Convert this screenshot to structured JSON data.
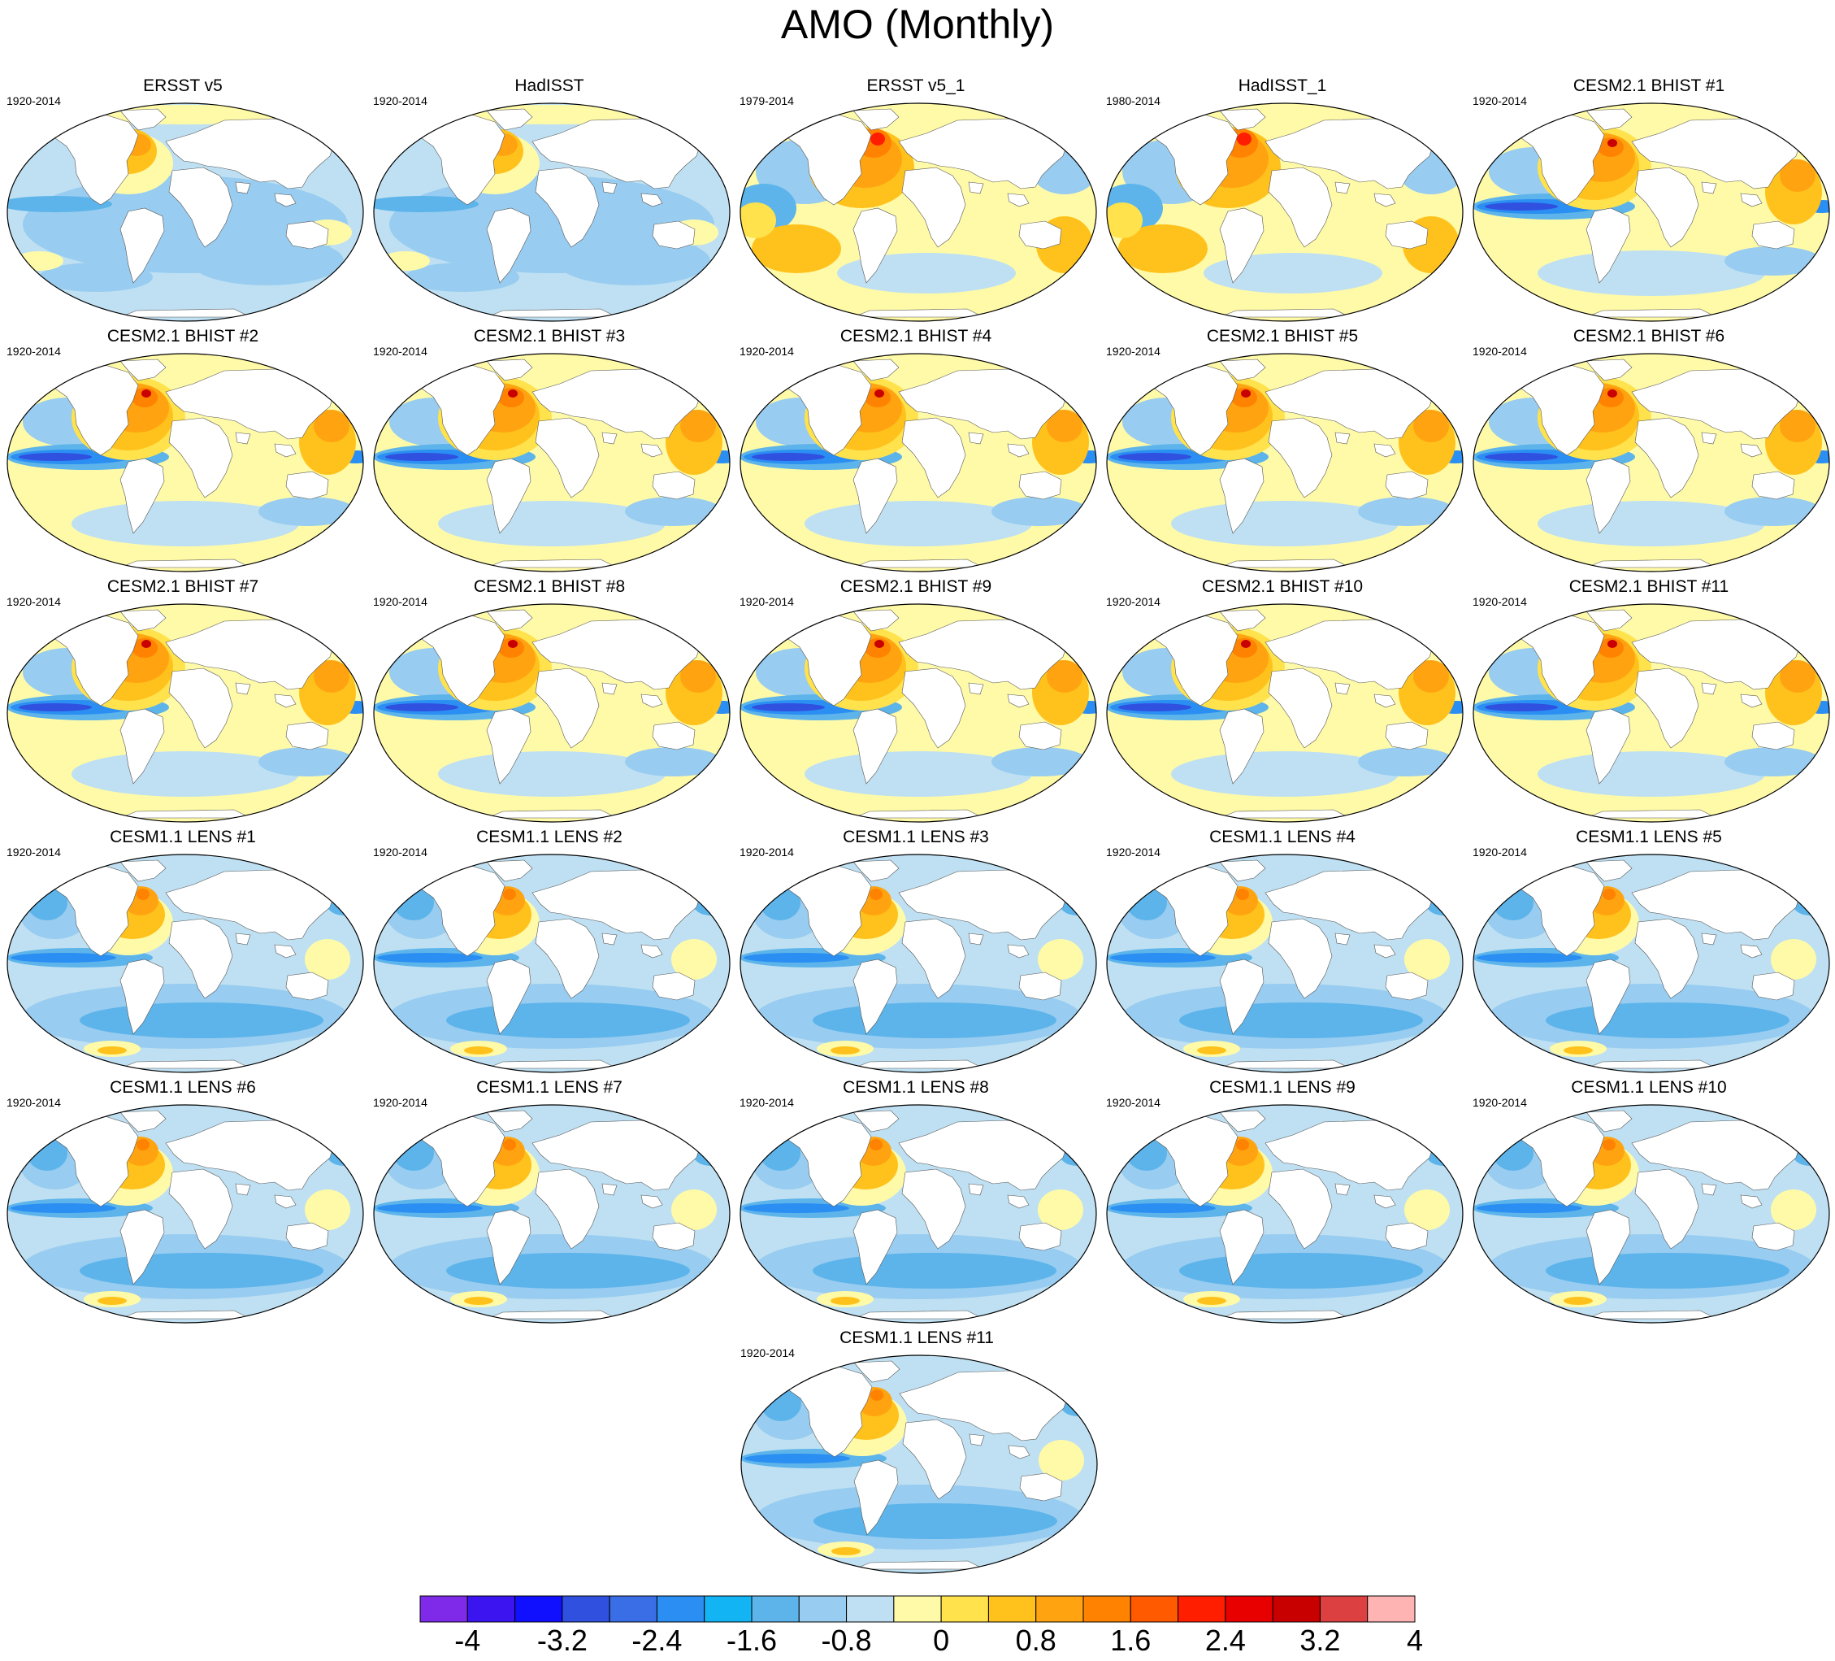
{
  "title": "AMO (Monthly)",
  "panels": [
    {
      "title": "ERSST v5",
      "period": "1920-2014",
      "variant": "obs-cool"
    },
    {
      "title": "HadISST",
      "period": "1920-2014",
      "variant": "obs-cool"
    },
    {
      "title": "ERSST v5_1",
      "period": "1979-2014",
      "variant": "obs-warm"
    },
    {
      "title": "HadISST_1",
      "period": "1980-2014",
      "variant": "obs-warm"
    },
    {
      "title": "CESM2.1 BHIST #1",
      "period": "1920-2014",
      "variant": "bhist"
    },
    {
      "title": "CESM2.1 BHIST #2",
      "period": "1920-2014",
      "variant": "bhist"
    },
    {
      "title": "CESM2.1 BHIST #3",
      "period": "1920-2014",
      "variant": "bhist"
    },
    {
      "title": "CESM2.1 BHIST #4",
      "period": "1920-2014",
      "variant": "bhist"
    },
    {
      "title": "CESM2.1 BHIST #5",
      "period": "1920-2014",
      "variant": "bhist"
    },
    {
      "title": "CESM2.1 BHIST #6",
      "period": "1920-2014",
      "variant": "bhist"
    },
    {
      "title": "CESM2.1 BHIST #7",
      "period": "1920-2014",
      "variant": "bhist"
    },
    {
      "title": "CESM2.1 BHIST #8",
      "period": "1920-2014",
      "variant": "bhist"
    },
    {
      "title": "CESM2.1 BHIST #9",
      "period": "1920-2014",
      "variant": "bhist"
    },
    {
      "title": "CESM2.1 BHIST #10",
      "period": "1920-2014",
      "variant": "bhist"
    },
    {
      "title": "CESM2.1 BHIST #11",
      "period": "1920-2014",
      "variant": "bhist"
    },
    {
      "title": "CESM1.1 LENS #1",
      "period": "1920-2014",
      "variant": "lens"
    },
    {
      "title": "CESM1.1 LENS #2",
      "period": "1920-2014",
      "variant": "lens"
    },
    {
      "title": "CESM1.1 LENS #3",
      "period": "1920-2014",
      "variant": "lens"
    },
    {
      "title": "CESM1.1 LENS #4",
      "period": "1920-2014",
      "variant": "lens"
    },
    {
      "title": "CESM1.1 LENS #5",
      "period": "1920-2014",
      "variant": "lens"
    },
    {
      "title": "CESM1.1 LENS #6",
      "period": "1920-2014",
      "variant": "lens"
    },
    {
      "title": "CESM1.1 LENS #7",
      "period": "1920-2014",
      "variant": "lens"
    },
    {
      "title": "CESM1.1 LENS #8",
      "period": "1920-2014",
      "variant": "lens"
    },
    {
      "title": "CESM1.1 LENS #9",
      "period": "1920-2014",
      "variant": "lens"
    },
    {
      "title": "CESM1.1 LENS #10",
      "period": "1920-2014",
      "variant": "lens"
    },
    {
      "title": "CESM1.1 LENS #11",
      "period": "1920-2014",
      "variant": "lens"
    }
  ],
  "colorbar": {
    "colors": [
      "#7e2ae8",
      "#3b14f0",
      "#1010ff",
      "#3050e0",
      "#3a6ee6",
      "#2a8ef2",
      "#12b4f4",
      "#5cb4ea",
      "#98ccf0",
      "#bee0f2",
      "#fffaa8",
      "#ffe24c",
      "#ffc21c",
      "#ffa410",
      "#ff8200",
      "#ff5a00",
      "#ff1e00",
      "#e80000",
      "#c80000",
      "#dc4040",
      "#ffb4b4"
    ],
    "labels": [
      "-4",
      "-3.2",
      "-2.4",
      "-1.6",
      "-0.8",
      "0",
      "0.8",
      "1.6",
      "2.4",
      "3.2",
      "4"
    ]
  },
  "palette": {
    "land": "#ffffff",
    "border": "#000000",
    "neutral_cool": "#bee0f2",
    "light_blue": "#98ccf0",
    "mid_blue": "#5cb4ea",
    "blue": "#2a8ef2",
    "dark_blue": "#3050e0",
    "pale_yellow": "#fffaa8",
    "yellow": "#ffe24c",
    "amber": "#ffc21c",
    "orange": "#ffa410",
    "deep_orange": "#ff8200",
    "red": "#ff1e00",
    "dark_red": "#c80000"
  }
}
